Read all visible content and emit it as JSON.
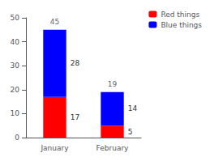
{
  "chart_data": {
    "type": "bar",
    "categories": [
      "January",
      "February"
    ],
    "series": [
      {
        "name": "Red things",
        "color": "#ff0000",
        "values": [
          17,
          5
        ]
      },
      {
        "name": "Blue things",
        "color": "#0000ff",
        "values": [
          28,
          14
        ]
      }
    ],
    "totals": [
      45,
      19
    ],
    "stacked": true,
    "data_labels": true,
    "ylim": [
      0,
      50
    ],
    "yticks": [
      0,
      10,
      20,
      30,
      40,
      50
    ],
    "grid": false,
    "legend": "upper right"
  }
}
